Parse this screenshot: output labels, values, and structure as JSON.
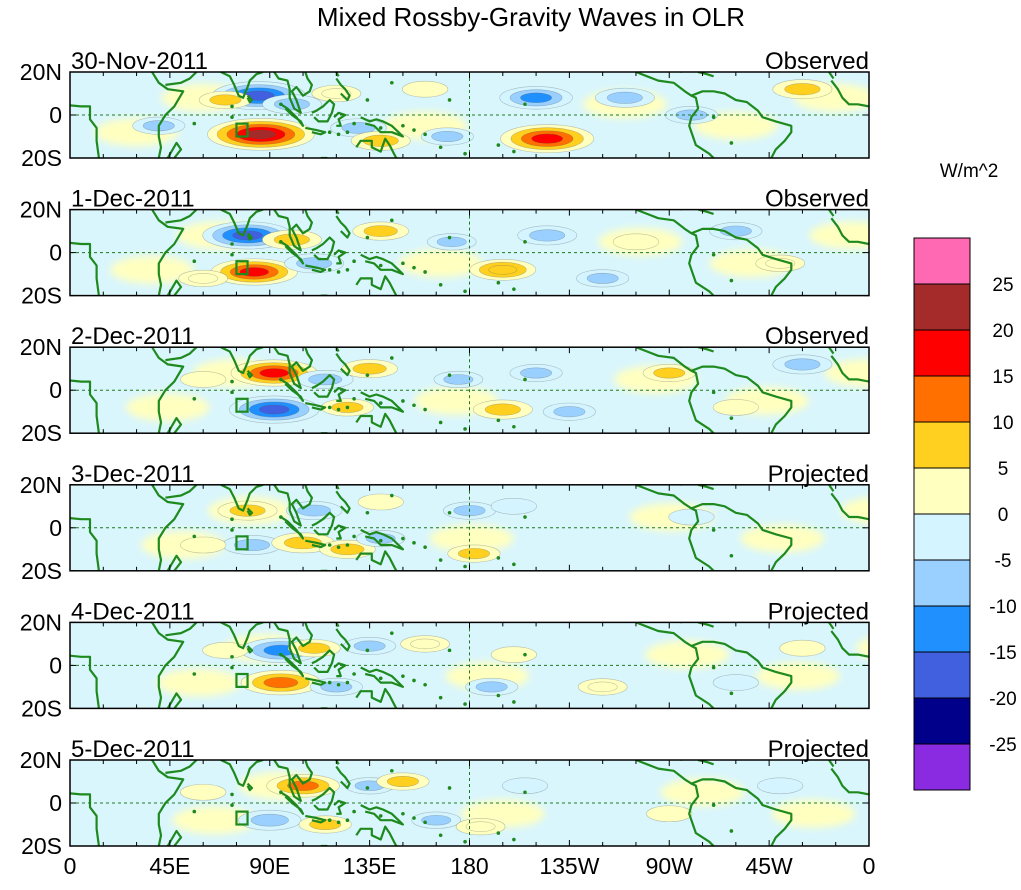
{
  "chart_data": {
    "type": "heatmap",
    "title": "Mixed Rossby-Gravity Waves in OLR",
    "colorbar": {
      "unit_label": "W/m^2",
      "levels": [
        25,
        20,
        15,
        10,
        5,
        0,
        -5,
        -10,
        -15,
        -20,
        -25
      ],
      "colors": [
        "#ff69b4",
        "#a52a2a",
        "#ff0000",
        "#ff7000",
        "#ffd020",
        "#ffffc0",
        "#d4f5ff",
        "#9ad0ff",
        "#2090ff",
        "#4060e0",
        "#00008b",
        "#8a2be2"
      ]
    },
    "x_ticks": [
      "0",
      "45E",
      "90E",
      "135E",
      "180",
      "135W",
      "90W",
      "45W",
      "0"
    ],
    "x_tick_lons": [
      0,
      45,
      90,
      135,
      180,
      225,
      270,
      315,
      360
    ],
    "y_ticks": [
      "20N",
      "0",
      "20S"
    ],
    "y_tick_lats": [
      20,
      0,
      -20
    ],
    "lon_range": [
      0,
      360
    ],
    "lat_range": [
      -20,
      20
    ],
    "box_region": {
      "lon": [
        75,
        80
      ],
      "lat": [
        -10,
        -4
      ]
    },
    "panels": [
      {
        "date": "30-Nov-2011",
        "kind": "Observed",
        "anomalies": [
          {
            "lon": 85,
            "lat": 9,
            "v": -18
          },
          {
            "lon": 100,
            "lat": 5,
            "v": -8
          },
          {
            "lon": 86,
            "lat": -9,
            "v": 22
          },
          {
            "lon": 70,
            "lat": 7,
            "v": 6
          },
          {
            "lon": 120,
            "lat": 10,
            "v": 5
          },
          {
            "lon": 130,
            "lat": -6,
            "v": -7
          },
          {
            "lon": 140,
            "lat": -12,
            "v": 8
          },
          {
            "lon": 210,
            "lat": 8,
            "v": -12
          },
          {
            "lon": 215,
            "lat": -11,
            "v": 18
          },
          {
            "lon": 250,
            "lat": 8,
            "v": -8
          },
          {
            "lon": 330,
            "lat": 12,
            "v": 8
          },
          {
            "lon": 170,
            "lat": -10,
            "v": -6
          },
          {
            "lon": 280,
            "lat": 0,
            "v": -6
          },
          {
            "lon": 40,
            "lat": -5,
            "v": -6
          },
          {
            "lon": 160,
            "lat": 12,
            "v": 4
          }
        ]
      },
      {
        "date": "1-Dec-2011",
        "kind": "Observed",
        "anomalies": [
          {
            "lon": 80,
            "lat": 8,
            "v": -17
          },
          {
            "lon": 83,
            "lat": -9,
            "v": 16
          },
          {
            "lon": 100,
            "lat": 6,
            "v": 8
          },
          {
            "lon": 110,
            "lat": -5,
            "v": -8
          },
          {
            "lon": 140,
            "lat": 10,
            "v": 7
          },
          {
            "lon": 195,
            "lat": -8,
            "v": 10
          },
          {
            "lon": 215,
            "lat": 8,
            "v": -8
          },
          {
            "lon": 240,
            "lat": -12,
            "v": -6
          },
          {
            "lon": 60,
            "lat": -12,
            "v": 5
          },
          {
            "lon": 300,
            "lat": 10,
            "v": -6
          },
          {
            "lon": 320,
            "lat": -5,
            "v": 5
          },
          {
            "lon": 172,
            "lat": 5,
            "v": -5
          },
          {
            "lon": 255,
            "lat": 5,
            "v": 4
          }
        ]
      },
      {
        "date": "2-Dec-2011",
        "kind": "Observed",
        "anomalies": [
          {
            "lon": 92,
            "lat": 8,
            "v": 16
          },
          {
            "lon": 92,
            "lat": -9,
            "v": -17
          },
          {
            "lon": 115,
            "lat": 5,
            "v": -7
          },
          {
            "lon": 135,
            "lat": 10,
            "v": 7
          },
          {
            "lon": 125,
            "lat": -8,
            "v": 6
          },
          {
            "lon": 195,
            "lat": -9,
            "v": 8
          },
          {
            "lon": 210,
            "lat": 8,
            "v": -6
          },
          {
            "lon": 225,
            "lat": -10,
            "v": -6
          },
          {
            "lon": 270,
            "lat": 8,
            "v": 6
          },
          {
            "lon": 330,
            "lat": 12,
            "v": -8
          },
          {
            "lon": 60,
            "lat": 5,
            "v": 4
          },
          {
            "lon": 175,
            "lat": 5,
            "v": -5
          },
          {
            "lon": 300,
            "lat": -8,
            "v": 4
          }
        ]
      },
      {
        "date": "3-Dec-2011",
        "kind": "Projected",
        "anomalies": [
          {
            "lon": 80,
            "lat": 8,
            "v": 8
          },
          {
            "lon": 82,
            "lat": -8,
            "v": -8
          },
          {
            "lon": 105,
            "lat": -7,
            "v": 9
          },
          {
            "lon": 110,
            "lat": 8,
            "v": -7
          },
          {
            "lon": 125,
            "lat": -10,
            "v": 7
          },
          {
            "lon": 140,
            "lat": -5,
            "v": -5
          },
          {
            "lon": 180,
            "lat": 8,
            "v": -6
          },
          {
            "lon": 182,
            "lat": -12,
            "v": 6
          },
          {
            "lon": 140,
            "lat": 12,
            "v": 4
          },
          {
            "lon": 200,
            "lat": 10,
            "v": -4
          },
          {
            "lon": 60,
            "lat": -8,
            "v": 4
          },
          {
            "lon": 280,
            "lat": 5,
            "v": -4
          }
        ]
      },
      {
        "date": "4-Dec-2011",
        "kind": "Projected",
        "anomalies": [
          {
            "lon": 95,
            "lat": 7,
            "v": -14
          },
          {
            "lon": 95,
            "lat": -8,
            "v": 14
          },
          {
            "lon": 110,
            "lat": 8,
            "v": 6
          },
          {
            "lon": 120,
            "lat": -10,
            "v": -6
          },
          {
            "lon": 135,
            "lat": 9,
            "v": -6
          },
          {
            "lon": 160,
            "lat": 10,
            "v": 5
          },
          {
            "lon": 190,
            "lat": -10,
            "v": -6
          },
          {
            "lon": 200,
            "lat": 5,
            "v": 4
          },
          {
            "lon": 240,
            "lat": -10,
            "v": 5
          },
          {
            "lon": 70,
            "lat": 7,
            "v": 4
          },
          {
            "lon": 330,
            "lat": 8,
            "v": 4
          },
          {
            "lon": 300,
            "lat": -8,
            "v": -4
          }
        ]
      },
      {
        "date": "5-Dec-2011",
        "kind": "Projected",
        "anomalies": [
          {
            "lon": 105,
            "lat": 8,
            "v": 12
          },
          {
            "lon": 90,
            "lat": -8,
            "v": -9
          },
          {
            "lon": 115,
            "lat": -10,
            "v": 6
          },
          {
            "lon": 135,
            "lat": 8,
            "v": -5
          },
          {
            "lon": 150,
            "lat": 10,
            "v": 6
          },
          {
            "lon": 165,
            "lat": -8,
            "v": -5
          },
          {
            "lon": 185,
            "lat": -11,
            "v": 5
          },
          {
            "lon": 205,
            "lat": 8,
            "v": -4
          },
          {
            "lon": 60,
            "lat": 5,
            "v": 4
          },
          {
            "lon": 270,
            "lat": -5,
            "v": 4
          },
          {
            "lon": 320,
            "lat": 8,
            "v": -4
          }
        ]
      }
    ]
  }
}
